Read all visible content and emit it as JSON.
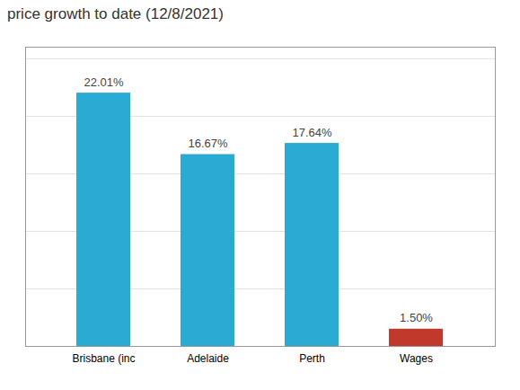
{
  "chart_data": {
    "type": "bar",
    "title": "price growth to date (12/8/2021)",
    "categories": [
      "Brisbane (inc",
      "Adelaide",
      "Perth",
      "Wages"
    ],
    "values": [
      22.01,
      16.67,
      17.64,
      1.5
    ],
    "value_labels": [
      "22.01%",
      "16.67%",
      "17.64%",
      "1.50%"
    ],
    "colors": [
      "#29ABD4",
      "#29ABD4",
      "#29ABD4",
      "#C0392B"
    ],
    "ylim": [
      0,
      26
    ],
    "yticks": [
      5,
      10,
      15,
      20,
      25
    ],
    "grid": true,
    "data_labels": true,
    "tick_labels": "x"
  }
}
